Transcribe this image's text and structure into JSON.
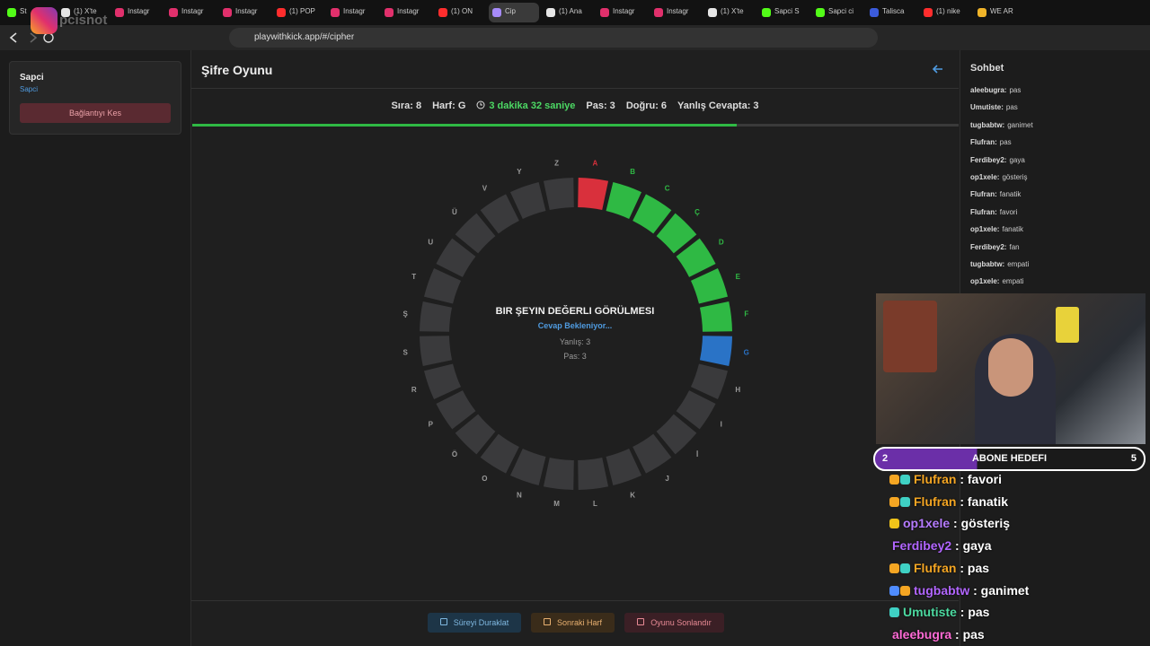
{
  "browser": {
    "tabs": [
      {
        "label": "St",
        "icon": "#53fc18"
      },
      {
        "label": "(1) X'te",
        "icon": "#e6e6e6"
      },
      {
        "label": "Instagr",
        "icon": "#e1306c"
      },
      {
        "label": "Instagr",
        "icon": "#e1306c"
      },
      {
        "label": "Instagr",
        "icon": "#e1306c"
      },
      {
        "label": "(1) POP",
        "icon": "#ff2d2d"
      },
      {
        "label": "Instagr",
        "icon": "#e1306c"
      },
      {
        "label": "Instagr",
        "icon": "#e1306c"
      },
      {
        "label": "(1) ON",
        "icon": "#ff2d2d"
      },
      {
        "label": "Cip",
        "icon": "#a78bfa",
        "active": true
      },
      {
        "label": "(1) Ana",
        "icon": "#e6e6e6"
      },
      {
        "label": "Instagr",
        "icon": "#e1306c"
      },
      {
        "label": "Instagr",
        "icon": "#e1306c"
      },
      {
        "label": "(1) X'te",
        "icon": "#e6e6e6"
      },
      {
        "label": "Sapci S",
        "icon": "#53fc18"
      },
      {
        "label": "Sapci ci",
        "icon": "#53fc18"
      },
      {
        "label": "Talisca",
        "icon": "#3b5bdb"
      },
      {
        "label": "(1) nike",
        "icon": "#ff2d2d"
      },
      {
        "label": "WE AR",
        "icon": "#f0b429"
      }
    ],
    "url": "playwithkick.app/#/cipher",
    "watermark": "pcisnot"
  },
  "sidebar": {
    "name": "Sapci",
    "link": "Sapci",
    "button": "Bağlantıyı Kes"
  },
  "game": {
    "title": "Şifre Oyunu",
    "stats": [
      "Sıra: 8",
      "Harf: G"
    ],
    "timer": "3 dakika 32 saniye",
    "stats_after": [
      "Pas: 3",
      "Doğru: 6",
      "Yanlış Cevapta: 3"
    ],
    "progress_percent": 71,
    "status_colors": {
      "wrong": "#d9303c",
      "correct": "#2fb944",
      "current": "#2a73c6",
      "pending": "#3a3a3c"
    },
    "letters": [
      {
        "letter": "A",
        "status": "wrong"
      },
      {
        "letter": "B",
        "status": "correct"
      },
      {
        "letter": "C",
        "status": "correct"
      },
      {
        "letter": "Ç",
        "status": "correct"
      },
      {
        "letter": "D",
        "status": "correct"
      },
      {
        "letter": "E",
        "status": "correct"
      },
      {
        "letter": "F",
        "status": "correct"
      },
      {
        "letter": "G",
        "status": "current"
      },
      {
        "letter": "H",
        "status": "pending"
      },
      {
        "letter": "I",
        "status": "pending"
      },
      {
        "letter": "İ",
        "status": "pending"
      },
      {
        "letter": "J",
        "status": "pending"
      },
      {
        "letter": "K",
        "status": "pending"
      },
      {
        "letter": "L",
        "status": "pending"
      },
      {
        "letter": "M",
        "status": "pending"
      },
      {
        "letter": "N",
        "status": "pending"
      },
      {
        "letter": "O",
        "status": "pending"
      },
      {
        "letter": "Ö",
        "status": "pending"
      },
      {
        "letter": "P",
        "status": "pending"
      },
      {
        "letter": "R",
        "status": "pending"
      },
      {
        "letter": "S",
        "status": "pending"
      },
      {
        "letter": "Ş",
        "status": "pending"
      },
      {
        "letter": "T",
        "status": "pending"
      },
      {
        "letter": "U",
        "status": "pending"
      },
      {
        "letter": "Ü",
        "status": "pending"
      },
      {
        "letter": "V",
        "status": "pending"
      },
      {
        "letter": "Y",
        "status": "pending"
      },
      {
        "letter": "Z",
        "status": "pending"
      }
    ],
    "clue": "BIR ŞEYIN DEĞERLI GÖRÜLMESI",
    "waiting": "Cevap Bekleniyor...",
    "wrong": "Yanlış: 3",
    "pass": "Pas: 3",
    "buttons": [
      "Süreyi Duraklat",
      "Sonraki Harf",
      "Oyunu Sonlandır"
    ]
  },
  "chat": {
    "title": "Sohbet",
    "messages": [
      {
        "user": "aleebugra:",
        "text": "pas"
      },
      {
        "user": "Umutiste:",
        "text": "pas"
      },
      {
        "user": "tugbabtw:",
        "text": "ganimet"
      },
      {
        "user": "Flufran:",
        "text": "pas"
      },
      {
        "user": "Ferdibey2:",
        "text": "gaya"
      },
      {
        "user": "op1xele:",
        "text": "gösteriş"
      },
      {
        "user": "Flufran:",
        "text": "fanatik"
      },
      {
        "user": "Flufran:",
        "text": "favori"
      },
      {
        "user": "op1xele:",
        "text": "fanatik"
      },
      {
        "user": "Ferdibey2:",
        "text": "fan"
      },
      {
        "user": "tugbabtw:",
        "text": "empati"
      },
      {
        "user": "op1xele:",
        "text": "empati"
      }
    ]
  },
  "stream": {
    "goal_current": "2",
    "goal_label": "ABONE HEDEFI",
    "goal_target": "5",
    "messages": [
      {
        "user": "Flufran",
        "text": " : favori",
        "color": "#f5a623",
        "badges": [
          "#f5a623",
          "#3fd1c4"
        ]
      },
      {
        "user": "Flufran",
        "text": " : fanatik",
        "color": "#f5a623",
        "badges": [
          "#f5a623",
          "#3fd1c4"
        ]
      },
      {
        "user": "op1xele",
        "text": " : gösteriş",
        "color": "#b57bff",
        "badges": [
          "#f0c419"
        ]
      },
      {
        "user": "Ferdibey2",
        "text": " : gaya",
        "color": "#b266ff",
        "badges": []
      },
      {
        "user": "Flufran",
        "text": " : pas",
        "color": "#f5a623",
        "badges": [
          "#f5a623",
          "#3fd1c4"
        ]
      },
      {
        "user": "tugbabtw",
        "text": " : ganimet",
        "color": "#b266ff",
        "badges": [
          "#4f8cff",
          "#f5a623"
        ]
      },
      {
        "user": "Umutiste",
        "text": " : pas",
        "color": "#4cd9a0",
        "badges": [
          "#3fd1c4"
        ]
      },
      {
        "user": "aleebugra",
        "text": " : pas",
        "color": "#ff6bd6",
        "badges": []
      }
    ]
  }
}
